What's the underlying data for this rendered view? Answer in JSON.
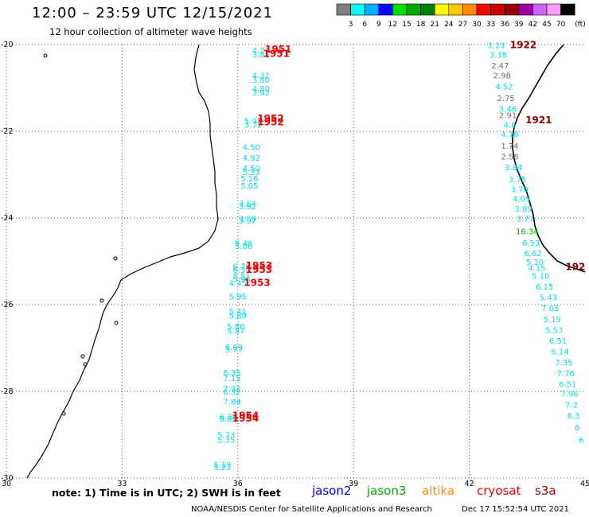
{
  "title": "12:00 – 23:59 UTC 12/15/2021",
  "subtitle": "12 hour collection of altimeter wave heights",
  "legend": {
    "unit": "(ft)",
    "bins": [
      {
        "label": "3",
        "color": "#7f7f7f"
      },
      {
        "label": "6",
        "color": "#00ffff"
      },
      {
        "label": "9",
        "color": "#00b0ff"
      },
      {
        "label": "12",
        "color": "#0000ff"
      },
      {
        "label": "15",
        "color": "#00e000"
      },
      {
        "label": "18",
        "color": "#00a800"
      },
      {
        "label": "21",
        "color": "#008000"
      },
      {
        "label": "24",
        "color": "#ffff00"
      },
      {
        "label": "27",
        "color": "#ffc800"
      },
      {
        "label": "30",
        "color": "#ff8c00"
      },
      {
        "label": "33",
        "color": "#ff0000"
      },
      {
        "label": "36",
        "color": "#cc0000"
      },
      {
        "label": "39",
        "color": "#990000"
      },
      {
        "label": "42",
        "color": "#990099"
      },
      {
        "label": "45",
        "color": "#cc66ff"
      },
      {
        "label": "70",
        "color": "#ff99ff"
      },
      {
        "label": "",
        "color": "#000000"
      }
    ]
  },
  "axes": {
    "lat_ticks": [
      "-20",
      "-22",
      "-24",
      "-26",
      "-28",
      "-30"
    ],
    "lon_ticks": [
      "30",
      "33",
      "36",
      "39",
      "42",
      "45"
    ],
    "lat_range": [
      -30,
      -20
    ],
    "lon_range": [
      30,
      45
    ]
  },
  "track1": [
    {
      "lat": -20.2,
      "lon": 36.6,
      "v": "4.27"
    },
    {
      "lat": -20.3,
      "lon": 36.6,
      "v": "3.81"
    },
    {
      "lat": -20.78,
      "lon": 36.6,
      "v": "4.32"
    },
    {
      "lat": -20.88,
      "lon": 36.6,
      "v": "3.80"
    },
    {
      "lat": -21.08,
      "lon": 36.6,
      "v": "4.80"
    },
    {
      "lat": -21.17,
      "lon": 36.6,
      "v": "3.92"
    },
    {
      "lat": -21.83,
      "lon": 36.4,
      "v": "5.93"
    },
    {
      "lat": -21.92,
      "lon": 36.4,
      "v": "3.72"
    },
    {
      "lat": -22.43,
      "lon": 36.35,
      "v": "4.50"
    },
    {
      "lat": -22.68,
      "lon": 36.35,
      "v": "4.92"
    },
    {
      "lat": -22.92,
      "lon": 36.35,
      "v": "4.50"
    },
    {
      "lat": -23.01,
      "lon": 36.35,
      "v": "5.33"
    },
    {
      "lat": -23.16,
      "lon": 36.3,
      "v": "5.16"
    },
    {
      "lat": -23.32,
      "lon": 36.3,
      "v": "5.05"
    },
    {
      "lat": -23.73,
      "lon": 36.25,
      "v": "3.54"
    },
    {
      "lat": -23.8,
      "lon": 36.25,
      "v": "3.92"
    },
    {
      "lat": -24.08,
      "lon": 36.25,
      "v": "3.59"
    },
    {
      "lat": -24.13,
      "lon": 36.25,
      "v": "3.97"
    },
    {
      "lat": -24.65,
      "lon": 36.15,
      "v": "5.48"
    },
    {
      "lat": -24.72,
      "lon": 36.15,
      "v": "5.86"
    },
    {
      "lat": -25.18,
      "lon": 36.1,
      "v": "6.70"
    },
    {
      "lat": -25.27,
      "lon": 36.1,
      "v": "6.39"
    },
    {
      "lat": -25.4,
      "lon": 36.1,
      "v": "5.51"
    },
    {
      "lat": -25.48,
      "lon": 36.1,
      "v": "5.96"
    },
    {
      "lat": -25.57,
      "lon": 36.0,
      "v": "4.45"
    },
    {
      "lat": -25.88,
      "lon": 36.0,
      "v": "5.95"
    },
    {
      "lat": -26.22,
      "lon": 36.0,
      "v": "5.41"
    },
    {
      "lat": -26.32,
      "lon": 36.0,
      "v": "5.89"
    },
    {
      "lat": -26.57,
      "lon": 35.95,
      "v": "5.80"
    },
    {
      "lat": -26.67,
      "lon": 35.95,
      "v": "5.87"
    },
    {
      "lat": -27.05,
      "lon": 35.9,
      "v": "6.09"
    },
    {
      "lat": -27.1,
      "lon": 35.9,
      "v": "5.77"
    },
    {
      "lat": -27.63,
      "lon": 35.85,
      "v": "6.35"
    },
    {
      "lat": -27.76,
      "lon": 35.85,
      "v": "7.15"
    },
    {
      "lat": -28.0,
      "lon": 35.85,
      "v": "7.42"
    },
    {
      "lat": -28.08,
      "lon": 35.85,
      "v": "6.32"
    },
    {
      "lat": -28.3,
      "lon": 35.85,
      "v": "7.84"
    },
    {
      "lat": -28.65,
      "lon": 35.75,
      "v": "6.34"
    },
    {
      "lat": -28.7,
      "lon": 35.75,
      "v": "6.85"
    },
    {
      "lat": -29.07,
      "lon": 35.7,
      "v": "5.73"
    },
    {
      "lat": -29.18,
      "lon": 35.7,
      "v": "5.35"
    },
    {
      "lat": -29.75,
      "lon": 35.6,
      "v": "5.19"
    },
    {
      "lat": -29.82,
      "lon": 35.6,
      "v": "5.23"
    }
  ],
  "track1_times": [
    {
      "lat": -20.18,
      "lon": 37.05,
      "t": "1951"
    },
    {
      "lat": -20.28,
      "lon": 37.0,
      "t": "1951"
    },
    {
      "lat": -21.78,
      "lon": 36.85,
      "t": "1952"
    },
    {
      "lat": -21.86,
      "lon": 36.85,
      "t": "1952"
    },
    {
      "lat": -25.17,
      "lon": 36.55,
      "t": "1953"
    },
    {
      "lat": -25.27,
      "lon": 36.55,
      "t": "1953"
    },
    {
      "lat": -25.57,
      "lon": 36.5,
      "t": "1953"
    },
    {
      "lat": -28.63,
      "lon": 36.2,
      "t": "1954"
    },
    {
      "lat": -28.7,
      "lon": 36.2,
      "t": "1954"
    }
  ],
  "track2": [
    {
      "lat": -20.08,
      "lon": 42.7,
      "v": "3.23",
      "c": "cyan"
    },
    {
      "lat": -20.3,
      "lon": 42.75,
      "v": "3.38",
      "c": "cyan"
    },
    {
      "lat": -20.55,
      "lon": 42.8,
      "v": "2.47",
      "c": "gray"
    },
    {
      "lat": -20.78,
      "lon": 42.85,
      "v": "2.98",
      "c": "gray"
    },
    {
      "lat": -21.04,
      "lon": 42.9,
      "v": "4.52",
      "c": "cyan"
    },
    {
      "lat": -21.3,
      "lon": 42.95,
      "v": "2.75",
      "c": "gray"
    },
    {
      "lat": -21.55,
      "lon": 43.0,
      "v": "3.46",
      "c": "cyan"
    },
    {
      "lat": -21.7,
      "lon": 43.0,
      "v": "2.91",
      "c": "gray"
    },
    {
      "lat": -21.92,
      "lon": 43.05,
      "v": "4.6",
      "c": "cyan"
    },
    {
      "lat": -22.14,
      "lon": 43.05,
      "v": "4.18",
      "c": "cyan"
    },
    {
      "lat": -22.4,
      "lon": 43.05,
      "v": "1.74",
      "c": "gray"
    },
    {
      "lat": -22.65,
      "lon": 43.05,
      "v": "2.58",
      "c": "gray"
    },
    {
      "lat": -22.9,
      "lon": 43.15,
      "v": "3.84",
      "c": "cyan"
    },
    {
      "lat": -23.17,
      "lon": 43.25,
      "v": "3.75",
      "c": "cyan"
    },
    {
      "lat": -23.4,
      "lon": 43.3,
      "v": "3.79",
      "c": "cyan"
    },
    {
      "lat": -23.62,
      "lon": 43.35,
      "v": "4.05",
      "c": "cyan"
    },
    {
      "lat": -23.85,
      "lon": 43.4,
      "v": "3.89",
      "c": "cyan"
    },
    {
      "lat": -24.08,
      "lon": 43.45,
      "v": "3.77",
      "c": "cyan"
    },
    {
      "lat": -24.38,
      "lon": 43.5,
      "v": "16.34",
      "c": "green"
    },
    {
      "lat": -24.64,
      "lon": 43.6,
      "v": "6.53",
      "c": "cyan"
    },
    {
      "lat": -24.88,
      "lon": 43.65,
      "v": "6.62",
      "c": "cyan"
    },
    {
      "lat": -25.08,
      "lon": 43.7,
      "v": "5.10",
      "c": "cyan"
    },
    {
      "lat": -25.22,
      "lon": 43.75,
      "v": "4.15",
      "c": "cyan"
    },
    {
      "lat": -25.4,
      "lon": 43.85,
      "v": "5.10",
      "c": "cyan"
    },
    {
      "lat": -25.65,
      "lon": 43.95,
      "v": "6.15",
      "c": "cyan"
    },
    {
      "lat": -25.9,
      "lon": 44.05,
      "v": "5.43",
      "c": "cyan"
    },
    {
      "lat": -26.15,
      "lon": 44.1,
      "v": "7.05",
      "c": "cyan"
    },
    {
      "lat": -26.4,
      "lon": 44.15,
      "v": "5.19",
      "c": "cyan"
    },
    {
      "lat": -26.65,
      "lon": 44.2,
      "v": "5.53",
      "c": "cyan"
    },
    {
      "lat": -26.9,
      "lon": 44.3,
      "v": "6.51",
      "c": "cyan"
    },
    {
      "lat": -27.15,
      "lon": 44.35,
      "v": "6.14",
      "c": "cyan"
    },
    {
      "lat": -27.4,
      "lon": 44.45,
      "v": "7.35",
      "c": "cyan"
    },
    {
      "lat": -27.65,
      "lon": 44.5,
      "v": "7.76",
      "c": "cyan"
    },
    {
      "lat": -27.9,
      "lon": 44.55,
      "v": "6.51",
      "c": "cyan"
    },
    {
      "lat": -28.12,
      "lon": 44.6,
      "v": "7.96",
      "c": "cyan"
    },
    {
      "lat": -28.38,
      "lon": 44.65,
      "v": "7.2",
      "c": "cyan"
    },
    {
      "lat": -28.62,
      "lon": 44.7,
      "v": "6.3",
      "c": "cyan"
    },
    {
      "lat": -28.9,
      "lon": 44.8,
      "v": "6",
      "c": "cyan"
    },
    {
      "lat": -29.18,
      "lon": 44.9,
      "v": "6",
      "c": "cyan"
    }
  ],
  "track2_times": [
    {
      "lat": -20.08,
      "lon": 43.4,
      "t": "1922"
    },
    {
      "lat": -21.82,
      "lon": 43.8,
      "t": "1921"
    },
    {
      "lat": -25.2,
      "lon": 44.75,
      "t": "192"
    }
  ],
  "colors": {
    "cyan": "#00e0e0",
    "gray": "#6e6e6e",
    "green": "#00aa00",
    "red": "#ee0000",
    "maroon": "#880000"
  },
  "note": "note: 1) Time is in UTC; 2) SWH is in feet",
  "satellites": [
    {
      "name": "jason2",
      "color": "#0000ee"
    },
    {
      "name": "jason3",
      "color": "#00aa00"
    },
    {
      "name": "altika",
      "color": "#ff8c00"
    },
    {
      "name": "cryosat",
      "color": "#ee0000"
    },
    {
      "name": "s3a",
      "color": "#990000"
    }
  ],
  "credit": "NOAA/NESDIS Center for Satellite Applications and Research",
  "stamp": "Dec 17 15:52:54 UTC 2021"
}
